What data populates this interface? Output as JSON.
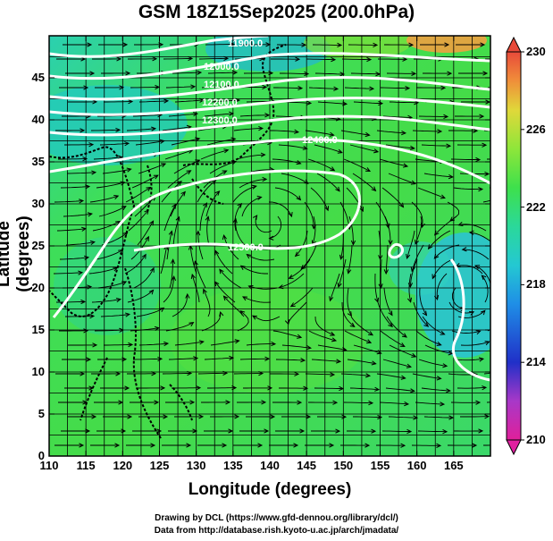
{
  "title": "GSM 18Z15Sep2025 (200.0hPa)",
  "x_axis": {
    "label": "Longitude (degrees)",
    "ticks": [
      "110",
      "115",
      "120",
      "125",
      "130",
      "135",
      "140",
      "145",
      "150",
      "155",
      "160",
      "165"
    ]
  },
  "y_axis": {
    "label": "Latitude (degrees)",
    "ticks": [
      "0",
      "5",
      "10",
      "15",
      "20",
      "25",
      "30",
      "35",
      "40",
      "45"
    ]
  },
  "colorbar": {
    "ticks": [
      "230",
      "226",
      "222",
      "218",
      "214",
      "210"
    ],
    "min": 210,
    "max": 230,
    "colors": [
      "#e0209a",
      "#a838c8",
      "#2030c8",
      "#1f8ee6",
      "#24c8d2",
      "#2bd89a",
      "#3ee04c",
      "#7ce63a",
      "#c8e63a",
      "#f0c83a",
      "#f08a3a",
      "#e84a3a"
    ]
  },
  "contour_labels": [
    "11900.0",
    "12000.0",
    "12100.0",
    "12200.0",
    "12300.0",
    "12400.0",
    "12500.0"
  ],
  "credits": {
    "line1": "Drawing by DCL (https://www.gfd-dennou.org/library/dcl/)",
    "line2": "Data from http://database.rish.kyoto-u.ac.jp/arch/jmadata/"
  }
}
